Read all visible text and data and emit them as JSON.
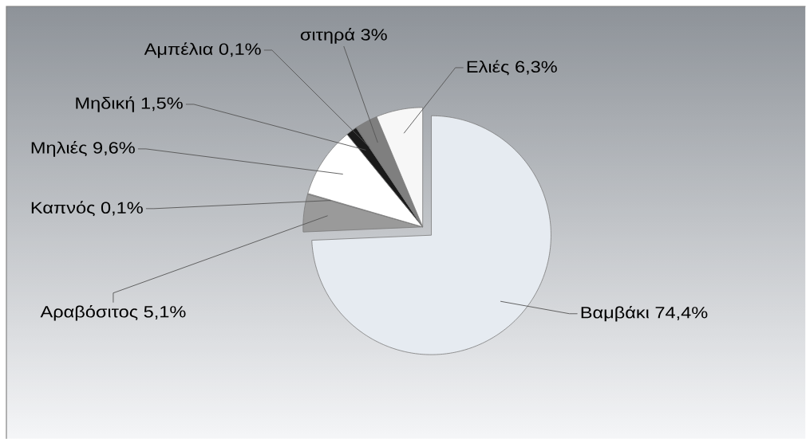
{
  "chart_data": {
    "type": "pie",
    "categories": [
      "Βαμβάκι",
      "Αραβόσιτος",
      "Καπνός",
      "Μηλιές",
      "Μηδική",
      "Αμπέλια",
      "σιτηρά",
      "Ελιές"
    ],
    "values": [
      74.4,
      5.1,
      0.1,
      9.6,
      1.5,
      0.1,
      3,
      6.3
    ],
    "colors": [
      "#e6ebf1",
      "#9a9a9a",
      "#d0d0d0",
      "#ffffff",
      "#1a1a1a",
      "#595959",
      "#7f7f7f",
      "#f7f7f7"
    ],
    "value_labels": [
      "74,4%",
      "5,1%",
      "0,1%",
      "9,6%",
      "1,5%",
      "0,1%",
      "3%",
      "6,3%"
    ]
  }
}
